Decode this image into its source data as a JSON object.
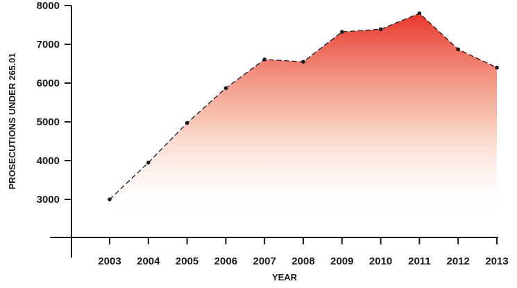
{
  "chart_data": {
    "type": "area",
    "title": "",
    "xlabel": "YEAR",
    "ylabel": "PROSECUTIONS UNDER 265.01",
    "categories": [
      "2003",
      "2004",
      "2005",
      "2006",
      "2007",
      "2008",
      "2009",
      "2010",
      "2011",
      "2012",
      "2013"
    ],
    "series": [
      {
        "values": [
          3000,
          3950,
          4970,
          5870,
          6610,
          6550,
          7320,
          7390,
          7800,
          6870,
          6400
        ]
      }
    ],
    "y_ticks": [
      "3000",
      "4000",
      "5000",
      "6000",
      "7000",
      "8000"
    ],
    "ylim": [
      2000,
      8000
    ],
    "grid": false,
    "line_style": "dashed",
    "fill_gradient": {
      "top": "#e8352a",
      "bottom": "#ffffff"
    },
    "line_color": "#1a1a1a"
  }
}
